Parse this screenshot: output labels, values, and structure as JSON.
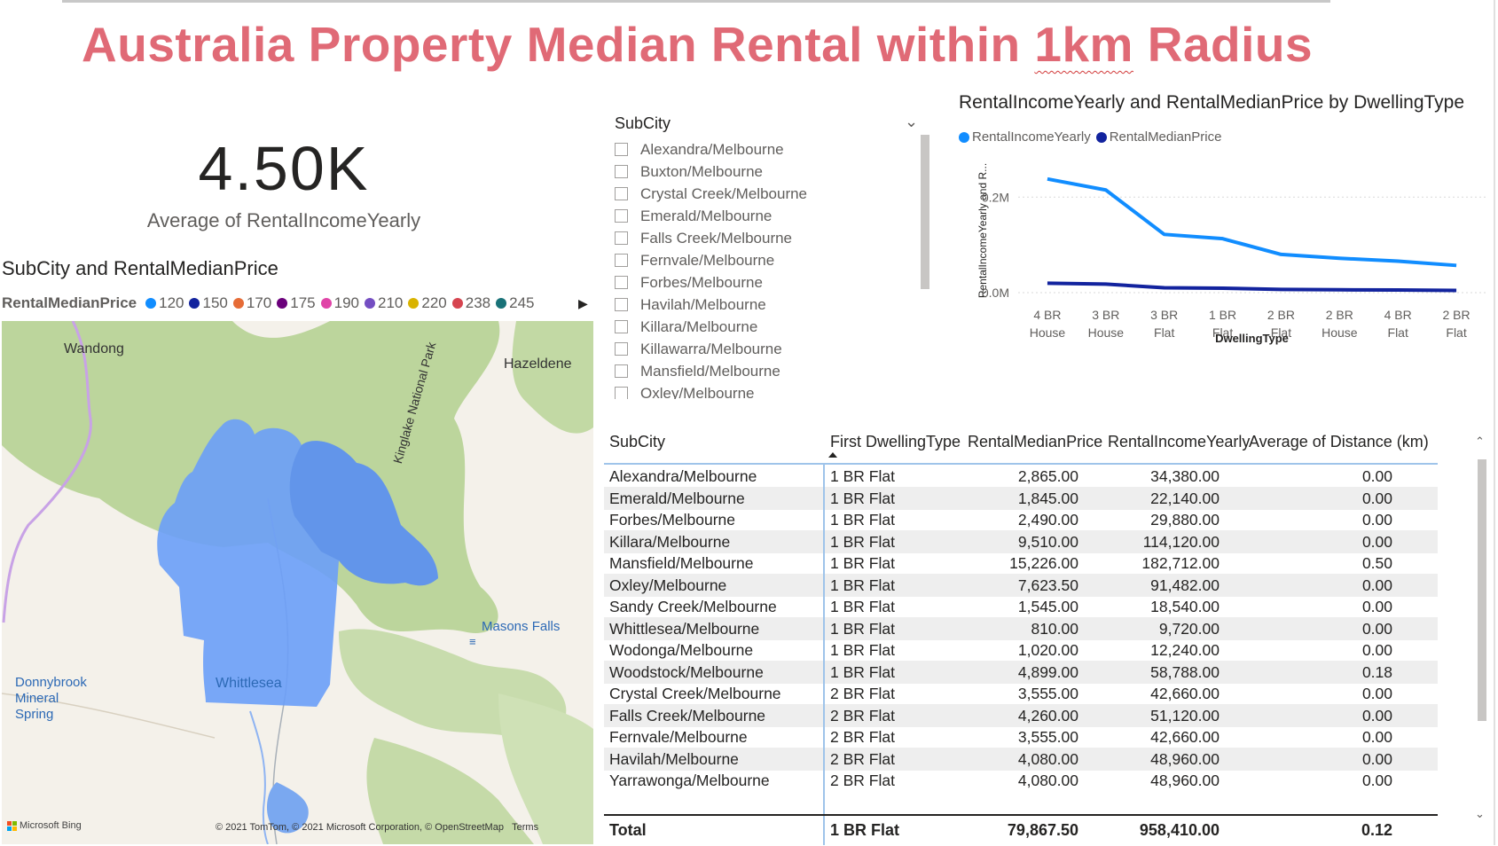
{
  "report": {
    "title_before": "Australia Property Median Rental within ",
    "title_underlined": "1km",
    "title_after": " Radius"
  },
  "kpi": {
    "value": "4.50K",
    "label": "Average of RentalIncomeYearly"
  },
  "map_visual": {
    "title": "SubCity and RentalMedianPrice",
    "legend_title": "RentalMedianPrice",
    "legend": [
      {
        "label": "120",
        "color": "#118dff"
      },
      {
        "label": "150",
        "color": "#12239e"
      },
      {
        "label": "170",
        "color": "#e66c37"
      },
      {
        "label": "175",
        "color": "#6b007b"
      },
      {
        "label": "190",
        "color": "#e044a7"
      },
      {
        "label": "210",
        "color": "#744ec2"
      },
      {
        "label": "220",
        "color": "#d9b300"
      },
      {
        "label": "238",
        "color": "#d64550"
      },
      {
        "label": "245",
        "color": "#197278"
      }
    ],
    "legend_next_icon": "caret-right-icon",
    "places": {
      "wandong": "Wandong",
      "hazeldene": "Hazeldene",
      "kinglake": "Kinglake National Park",
      "masons_falls": "Masons Falls",
      "donnybrook1": "Donnybrook",
      "donnybrook2": "Mineral",
      "donnybrook3": "Spring",
      "whittlesea": "Whittlesea"
    },
    "bing_label": "Microsoft Bing",
    "attribution_prefix": "© 2021 TomTom, © 2021 Microsoft Corporation, ",
    "attribution_osm": "© OpenStreetMap",
    "attribution_terms": "Terms",
    "colors": {
      "fill": "#6a9ff8",
      "forest": "#b9d39a",
      "road": "#c8a2e6"
    }
  },
  "slicer": {
    "title": "SubCity",
    "chevron_icon": "chevron-down-icon",
    "items": [
      "Alexandra/Melbourne",
      "Buxton/Melbourne",
      "Crystal Creek/Melbourne",
      "Emerald/Melbourne",
      "Falls Creek/Melbourne",
      "Fernvale/Melbourne",
      "Forbes/Melbourne",
      "Havilah/Melbourne",
      "Killara/Melbourne",
      "Killawarra/Melbourne",
      "Mansfield/Melbourne",
      "Oxley/Melbourne"
    ]
  },
  "line_chart": {
    "title": "RentalIncomeYearly and RentalMedianPrice by DwellingType",
    "legend": [
      {
        "label": "RentalIncomeYearly",
        "color": "#118dff"
      },
      {
        "label": "RentalMedianPrice",
        "color": "#12239e"
      }
    ]
  },
  "chart_data": {
    "type": "line",
    "title": "RentalIncomeYearly and RentalMedianPrice by DwellingType",
    "xlabel": "DwellingType",
    "ylabel": "RentalIncomeYearly and R...",
    "categories": [
      [
        "4 BR",
        "House"
      ],
      [
        "3 BR",
        "House"
      ],
      [
        "3 BR",
        "Flat"
      ],
      [
        "1 BR",
        "Flat"
      ],
      [
        "2 BR",
        "Flat"
      ],
      [
        "2 BR",
        "House"
      ],
      [
        "4 BR",
        "Flat"
      ],
      [
        "2 BR",
        "Flat"
      ]
    ],
    "yticks": [
      {
        "value": 0,
        "label": "0.0M"
      },
      {
        "value": 200000,
        "label": "0.2M"
      }
    ],
    "ylim": [
      0,
      260000
    ],
    "gridlines": true,
    "legend_position": "top-left",
    "series": [
      {
        "name": "RentalIncomeYearly",
        "color": "#118dff",
        "values": [
          238000,
          215000,
          122000,
          113000,
          80000,
          72000,
          66000,
          57000
        ]
      },
      {
        "name": "RentalMedianPrice",
        "color": "#12239e",
        "values": [
          19800,
          17900,
          10200,
          9400,
          6700,
          6000,
          5500,
          4700
        ]
      }
    ]
  },
  "table": {
    "columns": [
      "SubCity",
      "First DwellingType",
      "RentalMedianPrice",
      "RentalIncomeYearly",
      "Average of Distance (km)"
    ],
    "rows": [
      [
        "Alexandra/Melbourne",
        "1 BR Flat",
        "2,865.00",
        "34,380.00",
        "0.00"
      ],
      [
        "Emerald/Melbourne",
        "1 BR Flat",
        "1,845.00",
        "22,140.00",
        "0.00"
      ],
      [
        "Forbes/Melbourne",
        "1 BR Flat",
        "2,490.00",
        "29,880.00",
        "0.00"
      ],
      [
        "Killara/Melbourne",
        "1 BR Flat",
        "9,510.00",
        "114,120.00",
        "0.00"
      ],
      [
        "Mansfield/Melbourne",
        "1 BR Flat",
        "15,226.00",
        "182,712.00",
        "0.50"
      ],
      [
        "Oxley/Melbourne",
        "1 BR Flat",
        "7,623.50",
        "91,482.00",
        "0.00"
      ],
      [
        "Sandy Creek/Melbourne",
        "1 BR Flat",
        "1,545.00",
        "18,540.00",
        "0.00"
      ],
      [
        "Whittlesea/Melbourne",
        "1 BR Flat",
        "810.00",
        "9,720.00",
        "0.00"
      ],
      [
        "Wodonga/Melbourne",
        "1 BR Flat",
        "1,020.00",
        "12,240.00",
        "0.00"
      ],
      [
        "Woodstock/Melbourne",
        "1 BR Flat",
        "4,899.00",
        "58,788.00",
        "0.18"
      ],
      [
        "Crystal Creek/Melbourne",
        "2 BR Flat",
        "3,555.00",
        "42,660.00",
        "0.00"
      ],
      [
        "Falls Creek/Melbourne",
        "2 BR Flat",
        "4,260.00",
        "51,120.00",
        "0.00"
      ],
      [
        "Fernvale/Melbourne",
        "2 BR Flat",
        "3,555.00",
        "42,660.00",
        "0.00"
      ],
      [
        "Havilah/Melbourne",
        "2 BR Flat",
        "4,080.00",
        "48,960.00",
        "0.00"
      ],
      [
        "Yarrawonga/Melbourne",
        "2 BR Flat",
        "4,080.00",
        "48,960.00",
        "0.00"
      ]
    ],
    "total": [
      "Total",
      "1 BR Flat",
      "79,867.50",
      "958,410.00",
      "0.12"
    ],
    "sort_icon": "sort-ascending-icon"
  }
}
